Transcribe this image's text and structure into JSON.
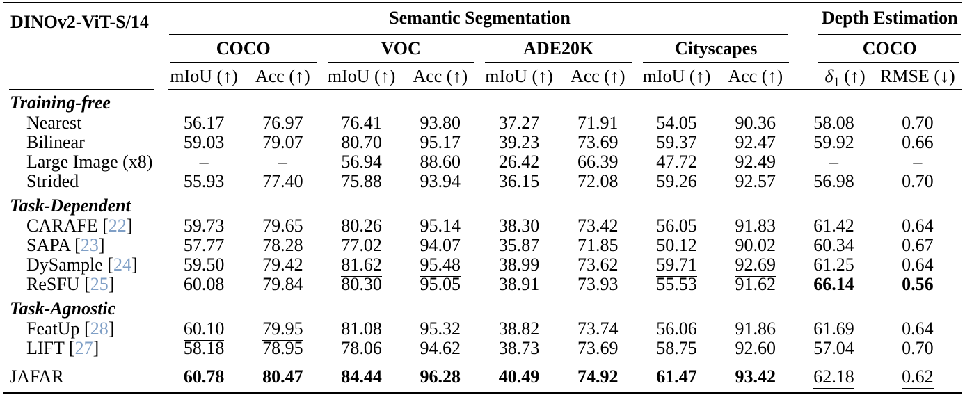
{
  "colors": {
    "citation": "#7f9fc6",
    "text": "#000000",
    "background": "#ffffff"
  },
  "table": {
    "model_label": "DINOv2-ViT-S/14",
    "col_groups": [
      {
        "label": "Semantic Segmentation",
        "span": 8
      },
      {
        "label": "Depth Estimation",
        "span": 2
      }
    ],
    "datasets": [
      {
        "label": "COCO"
      },
      {
        "label": "VOC"
      },
      {
        "label": "ADE20K"
      },
      {
        "label": "Cityscapes"
      },
      {
        "label": "COCO"
      }
    ],
    "metrics": [
      {
        "label": "mIoU (↑)"
      },
      {
        "label": "Acc (↑)"
      },
      {
        "label": "mIoU (↑)"
      },
      {
        "label": "Acc (↑)"
      },
      {
        "label": "mIoU (↑)"
      },
      {
        "label": "Acc (↑)"
      },
      {
        "label": "mIoU (↑)"
      },
      {
        "label": "Acc (↑)"
      },
      {
        "pre": "δ",
        "sub": "1",
        "post": " (↑)"
      },
      {
        "label": "RMSE (↓)"
      }
    ],
    "sections": [
      {
        "title": "Training-free",
        "rows": [
          {
            "method": "Nearest",
            "values": [
              "56.17",
              "76.97",
              "76.41",
              "93.80",
              "37.27",
              "71.91",
              "54.05",
              "90.36",
              "58.08",
              "0.70"
            ]
          },
          {
            "method": "Bilinear",
            "values": [
              "59.03",
              "79.07",
              "80.70",
              "95.17",
              {
                "v": "39.23",
                "u": true
              },
              "73.69",
              "59.37",
              "92.47",
              "59.92",
              "0.66"
            ]
          },
          {
            "method": "Large Image (x8)",
            "values": [
              "–",
              "–",
              "56.94",
              "88.60",
              "26.42",
              "66.39",
              "47.72",
              "92.49",
              "–",
              "–"
            ]
          },
          {
            "method": "Strided",
            "values": [
              "55.93",
              "77.40",
              "75.88",
              "93.94",
              "36.15",
              "72.08",
              "59.26",
              "92.57",
              "56.98",
              "0.70"
            ]
          }
        ]
      },
      {
        "title": "Task-Dependent",
        "rows": [
          {
            "method": "CARAFE",
            "cite": "22",
            "values": [
              "59.73",
              "79.65",
              "80.26",
              "95.14",
              "38.30",
              "73.42",
              "56.05",
              "91.83",
              "61.42",
              "0.64"
            ]
          },
          {
            "method": "SAPA",
            "cite": "23",
            "values": [
              "57.77",
              "78.28",
              "77.02",
              "94.07",
              "35.87",
              "71.85",
              "50.12",
              "90.02",
              "60.34",
              "0.67"
            ]
          },
          {
            "method": "DySample",
            "cite": "24",
            "values": [
              "59.50",
              "79.42",
              {
                "v": "81.62",
                "u": true
              },
              {
                "v": "95.48",
                "u": true
              },
              "38.99",
              "73.62",
              {
                "v": "59.71",
                "u": true
              },
              {
                "v": "92.69",
                "u": true
              },
              "61.25",
              "0.64"
            ]
          },
          {
            "method": "ReSFU",
            "cite": "25",
            "values": [
              "60.08",
              "79.84",
              "80.30",
              "95.05",
              "38.91",
              {
                "v": "73.93",
                "u": true
              },
              "55.53",
              "91.62",
              {
                "v": "66.14",
                "b": true
              },
              {
                "v": "0.56",
                "b": true
              }
            ]
          }
        ]
      },
      {
        "title": "Task-Agnostic",
        "rows": [
          {
            "method": "FeatUp",
            "cite": "28",
            "values": [
              {
                "v": "60.10",
                "u": true
              },
              {
                "v": "79.95",
                "u": true
              },
              "81.08",
              "95.32",
              "38.82",
              "73.74",
              "56.06",
              "91.86",
              "61.69",
              "0.64"
            ]
          },
          {
            "method": "LIFT",
            "cite": "27",
            "values": [
              "58.18",
              "78.95",
              "78.06",
              "94.62",
              "38.73",
              "73.69",
              "58.75",
              "92.60",
              "57.04",
              "0.70"
            ]
          }
        ]
      }
    ],
    "final_row": {
      "method": "JAFAR",
      "values": [
        {
          "v": "60.78",
          "b": true
        },
        {
          "v": "80.47",
          "b": true
        },
        {
          "v": "84.44",
          "b": true
        },
        {
          "v": "96.28",
          "b": true
        },
        {
          "v": "40.49",
          "b": true
        },
        {
          "v": "74.92",
          "b": true
        },
        {
          "v": "61.47",
          "b": true
        },
        {
          "v": "93.42",
          "b": true
        },
        {
          "v": "62.18",
          "u": true
        },
        {
          "v": "0.62",
          "u": true
        }
      ]
    }
  }
}
